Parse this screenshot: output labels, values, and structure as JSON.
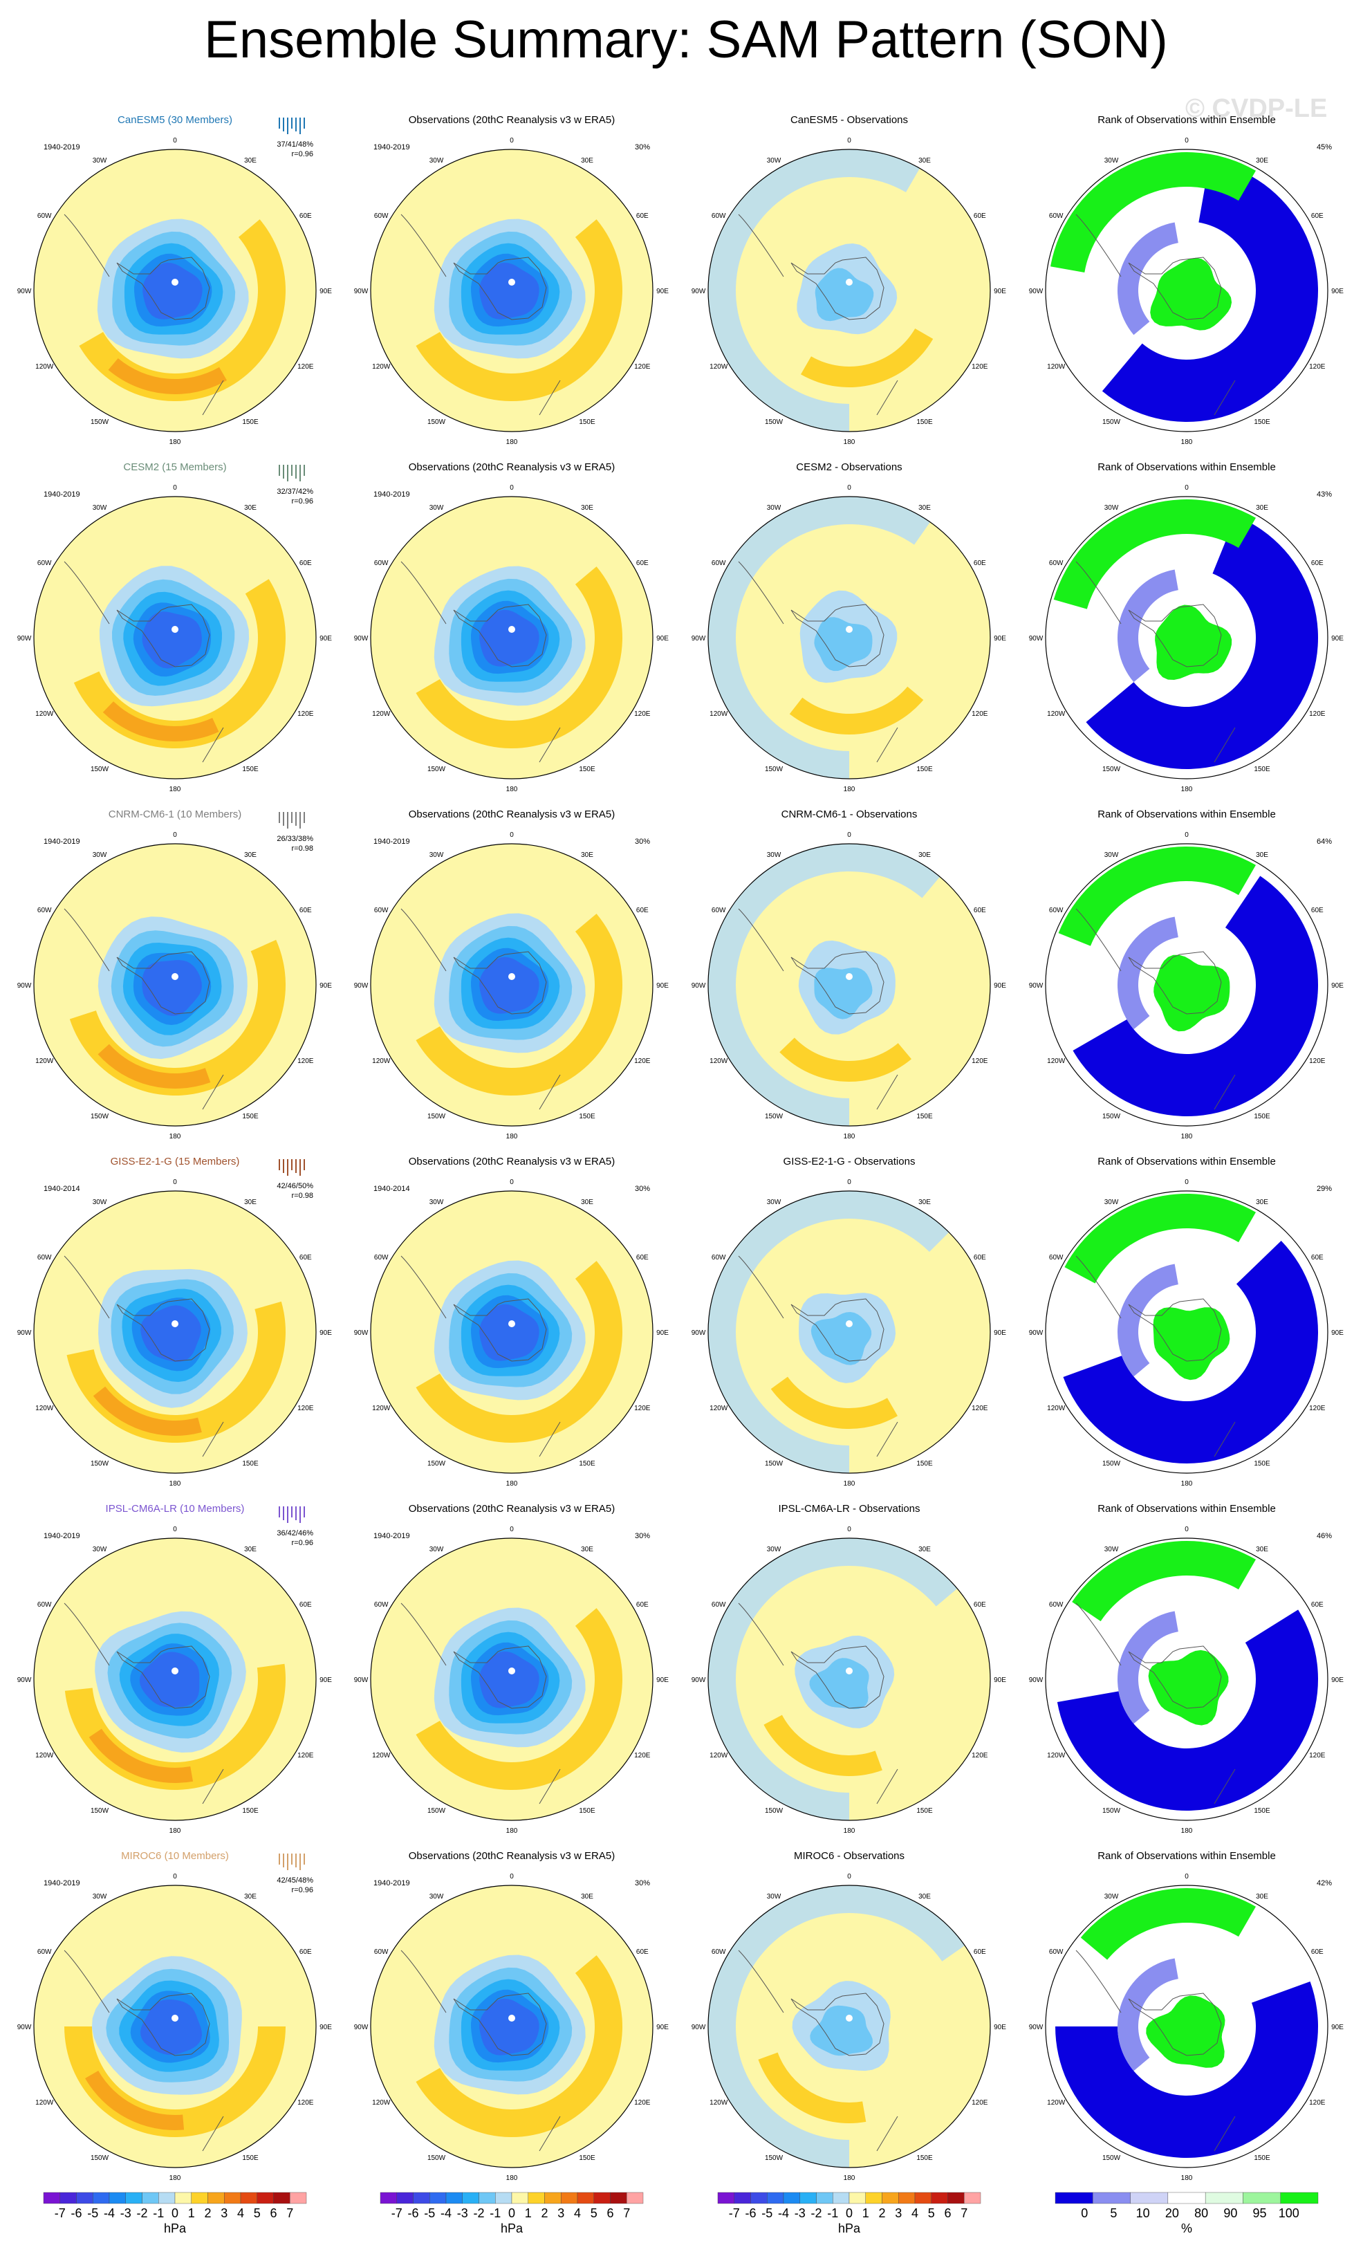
{
  "title": "Ensemble Summary: SAM Pattern (SON)",
  "watermark": "© CVDP-LE",
  "colors": {
    "page_bg": "#ffffff",
    "pos": [
      "#fdf7a8",
      "#fdd22a",
      "#f7a51c",
      "#f17a16",
      "#e44b12",
      "#c91f12",
      "#a81010",
      "#ffa3a3"
    ],
    "neg": [
      "#b6dcf3",
      "#6fc7f5",
      "#29b0f5",
      "#1c8bf2",
      "#2f6bf0",
      "#3d4be6",
      "#4a26d9",
      "#7a14d2"
    ],
    "rank": {
      "0-5": "#0a00e0",
      "5-10": "#8a8ef0",
      "10-20": "#cfd3f6",
      "20-80": "#ffffff",
      "80-90": "#dffbe1",
      "90-95": "#9df59d",
      "95-100": "#18f018"
    },
    "row_label_colors": [
      "#1f77b4",
      "#6a8d78",
      "#7f7f7f",
      "#a0522d",
      "#7b55d0",
      "#d3a06a"
    ]
  },
  "lon_labels": [
    "0",
    "30E",
    "60E",
    "90E",
    "120E",
    "150E",
    "180",
    "150W",
    "120W",
    "90W",
    "60W",
    "30W"
  ],
  "rank_column_title": "Rank of Observations within Ensemble",
  "rows": [
    {
      "model": "CanESM5",
      "label": "CanESM5 (30 Members)",
      "period": "1940-2019",
      "stats": "37/41/48%",
      "corr": "r=0.96",
      "obs_title": "Observations (20thC Reanalysis v3 w ERA5)",
      "obs_period": "1940-2019",
      "obs_pct": "30%",
      "diff_title": "CanESM5 - Observations",
      "rank_pct": "45%"
    },
    {
      "model": "CESM2",
      "label": "CESM2 (15 Members)",
      "period": "1940-2019",
      "stats": "32/37/42%",
      "corr": "r=0.96",
      "obs_title": "Observations (20thC Reanalysis v3 w ERA5)",
      "obs_period": "1940-2019",
      "obs_pct": "",
      "diff_title": "CESM2 - Observations",
      "rank_pct": "43%"
    },
    {
      "model": "CNRM-CM6-1",
      "label": "CNRM-CM6-1 (10 Members)",
      "period": "1940-2019",
      "stats": "26/33/38%",
      "corr": "r=0.98",
      "obs_title": "Observations (20thC Reanalysis v3 w ERA5)",
      "obs_period": "1940-2019",
      "obs_pct": "30%",
      "diff_title": "CNRM-CM6-1 - Observations",
      "rank_pct": "64%"
    },
    {
      "model": "GISS-E2-1-G",
      "label": "GISS-E2-1-G (15 Members)",
      "period": "1940-2014",
      "stats": "42/46/50%",
      "corr": "r=0.98",
      "obs_title": "Observations (20thC Reanalysis v3 w ERA5)",
      "obs_period": "1940-2014",
      "obs_pct": "30%",
      "diff_title": "GISS-E2-1-G - Observations",
      "rank_pct": "29%"
    },
    {
      "model": "IPSL-CM6A-LR",
      "label": "IPSL-CM6A-LR (10 Members)",
      "period": "1940-2019",
      "stats": "36/42/46%",
      "corr": "r=0.96",
      "obs_title": "Observations (20thC Reanalysis v3 w ERA5)",
      "obs_period": "1940-2019",
      "obs_pct": "30%",
      "diff_title": "IPSL-CM6A-LR - Observations",
      "rank_pct": "46%"
    },
    {
      "model": "MIROC6",
      "label": "MIROC6 (10 Members)",
      "period": "1940-2019",
      "stats": "42/45/48%",
      "corr": "r=0.96",
      "obs_title": "Observations (20thC Reanalysis v3 w ERA5)",
      "obs_period": "1940-2019",
      "obs_pct": "30%",
      "diff_title": "MIROC6 - Observations",
      "rank_pct": "42%"
    }
  ],
  "colorbars": [
    {
      "labels": [
        "-7",
        "-6",
        "-5",
        "-4",
        "-3",
        "-2",
        "-1",
        "0",
        "1",
        "2",
        "3",
        "4",
        "5",
        "6",
        "7"
      ],
      "units": "hPa"
    },
    {
      "labels": [
        "-7",
        "-6",
        "-5",
        "-4",
        "-3",
        "-2",
        "-1",
        "0",
        "1",
        "2",
        "3",
        "4",
        "5",
        "6",
        "7"
      ],
      "units": "hPa"
    },
    {
      "labels": [
        "-7",
        "-6",
        "-5",
        "-4",
        "-3",
        "-2",
        "-1",
        "0",
        "1",
        "2",
        "3",
        "4",
        "5",
        "6",
        "7"
      ],
      "units": "hPa"
    },
    {
      "labels": [
        "0",
        "5",
        "10",
        "20",
        "80",
        "90",
        "95",
        "100"
      ],
      "units": "%"
    }
  ],
  "chart_data": {
    "type": "heatmap",
    "projection": "south polar stereographic",
    "field": "SLP regression pattern onto SAM index, SON",
    "units": "hPa",
    "levels": [
      -7,
      -6,
      -5,
      -4,
      -3,
      -2,
      -1,
      0,
      1,
      2,
      3,
      4,
      5,
      6,
      7
    ],
    "rank_levels": [
      0,
      5,
      10,
      20,
      80,
      90,
      95,
      100
    ],
    "panels_per_row": [
      "model ensemble mean",
      "observations",
      "model minus observations",
      "rank of observations within ensemble"
    ]
  }
}
